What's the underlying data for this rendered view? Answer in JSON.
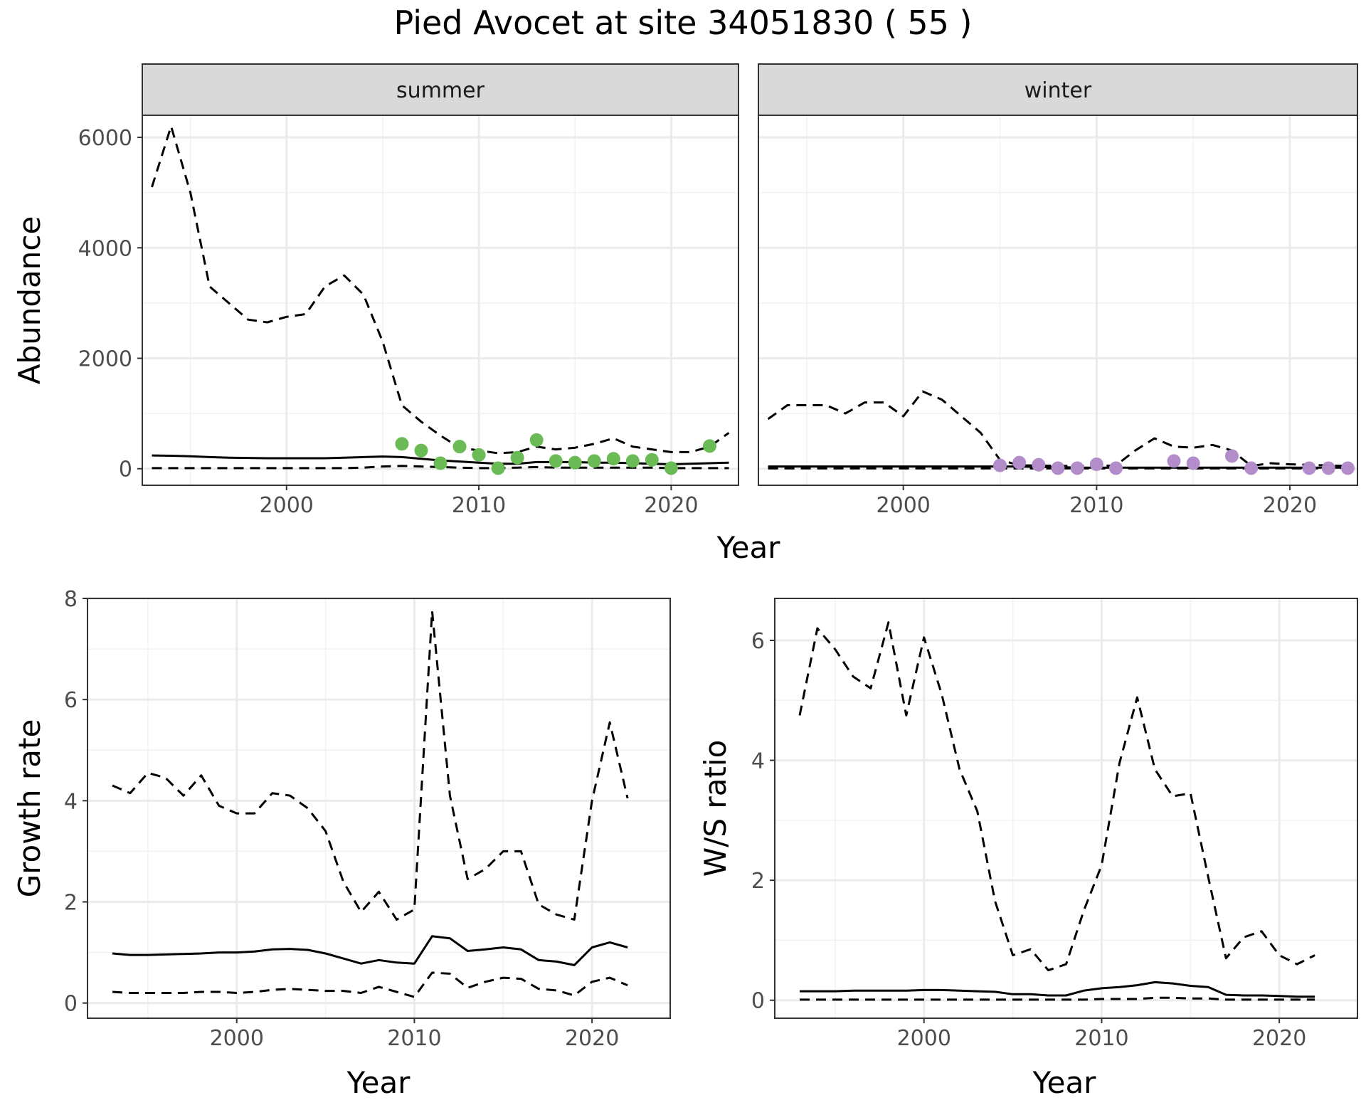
{
  "title": "Pied Avocet at site 34051830 ( 55 )",
  "colors": {
    "summer_points": "#6abb55",
    "winter_points": "#b28dc9",
    "line": "#000000",
    "grid_major": "#ebebeb",
    "grid_minor": "#f2f2f2",
    "strip_fill": "#d9d9d9",
    "panel_border": "#333333"
  },
  "chart_data": [
    {
      "type": "line",
      "panel": "abundance-summer",
      "facet_label": "summer",
      "xlabel": "Year",
      "ylabel": "Abundance",
      "xlim": [
        1992.5,
        2023.5
      ],
      "ylim": [
        -300,
        6400
      ],
      "x_ticks": [
        2000,
        2010,
        2020
      ],
      "y_ticks": [
        0,
        2000,
        4000,
        6000
      ],
      "grid": true,
      "series": [
        {
          "role": "estimate",
          "style": "solid",
          "x": [
            1993,
            1994,
            1995,
            1996,
            1997,
            1998,
            1999,
            2000,
            2001,
            2002,
            2003,
            2004,
            2005,
            2006,
            2007,
            2008,
            2009,
            2010,
            2011,
            2012,
            2013,
            2014,
            2015,
            2016,
            2017,
            2018,
            2019,
            2020,
            2021,
            2022,
            2023
          ],
          "y": [
            240,
            235,
            225,
            210,
            200,
            195,
            190,
            190,
            190,
            190,
            200,
            210,
            220,
            210,
            180,
            150,
            130,
            110,
            90,
            90,
            120,
            120,
            120,
            110,
            110,
            100,
            90,
            80,
            90,
            100,
            110
          ]
        },
        {
          "role": "upper",
          "style": "dashed",
          "x": [
            1993,
            1994,
            1995,
            1996,
            1997,
            1998,
            1999,
            2000,
            2001,
            2002,
            2003,
            2004,
            2005,
            2006,
            2007,
            2008,
            2009,
            2010,
            2011,
            2012,
            2013,
            2014,
            2015,
            2016,
            2017,
            2018,
            2019,
            2020,
            2021,
            2022,
            2023
          ],
          "y": [
            5100,
            6200,
            5000,
            3300,
            3000,
            2700,
            2650,
            2750,
            2800,
            3300,
            3500,
            3150,
            2300,
            1150,
            850,
            600,
            380,
            330,
            280,
            300,
            400,
            350,
            380,
            450,
            550,
            400,
            350,
            300,
            300,
            400,
            650
          ]
        },
        {
          "role": "lower",
          "style": "dashed",
          "x": [
            1993,
            1994,
            1995,
            1996,
            1997,
            1998,
            1999,
            2000,
            2001,
            2002,
            2003,
            2004,
            2005,
            2006,
            2007,
            2008,
            2009,
            2010,
            2011,
            2012,
            2013,
            2014,
            2015,
            2016,
            2017,
            2018,
            2019,
            2020,
            2021,
            2022,
            2023
          ],
          "y": [
            10,
            10,
            10,
            10,
            10,
            10,
            10,
            10,
            10,
            10,
            10,
            20,
            40,
            50,
            40,
            30,
            20,
            10,
            10,
            20,
            30,
            20,
            20,
            20,
            20,
            20,
            20,
            10,
            10,
            10,
            10
          ]
        }
      ],
      "points": {
        "x": [
          2006,
          2007,
          2008,
          2009,
          2010,
          2011,
          2012,
          2013,
          2014,
          2015,
          2016,
          2017,
          2018,
          2019,
          2020,
          2022
        ],
        "y": [
          450,
          330,
          100,
          400,
          250,
          10,
          200,
          520,
          140,
          110,
          140,
          180,
          140,
          160,
          10,
          410
        ]
      }
    },
    {
      "type": "line",
      "panel": "abundance-winter",
      "facet_label": "winter",
      "xlabel": "Year",
      "ylabel": "Abundance",
      "xlim": [
        1992.5,
        2023.5
      ],
      "ylim": [
        -300,
        6400
      ],
      "x_ticks": [
        2000,
        2010,
        2020
      ],
      "y_ticks": [
        0,
        2000,
        4000,
        6000
      ],
      "grid": true,
      "series": [
        {
          "role": "estimate",
          "style": "solid",
          "x": [
            1993,
            1994,
            1995,
            1996,
            1997,
            1998,
            1999,
            2000,
            2001,
            2002,
            2003,
            2004,
            2005,
            2006,
            2007,
            2008,
            2009,
            2010,
            2011,
            2012,
            2013,
            2014,
            2015,
            2016,
            2017,
            2018,
            2019,
            2020,
            2021,
            2022,
            2023
          ],
          "y": [
            40,
            40,
            40,
            40,
            40,
            40,
            40,
            40,
            40,
            40,
            40,
            40,
            40,
            40,
            30,
            30,
            20,
            20,
            20,
            20,
            20,
            20,
            20,
            20,
            20,
            20,
            20,
            20,
            20,
            20,
            20
          ]
        },
        {
          "role": "upper",
          "style": "dashed",
          "x": [
            1993,
            1994,
            1995,
            1996,
            1997,
            1998,
            1999,
            2000,
            2001,
            2002,
            2003,
            2004,
            2005,
            2006,
            2007,
            2008,
            2009,
            2010,
            2011,
            2012,
            2013,
            2014,
            2015,
            2016,
            2017,
            2018,
            2019,
            2020,
            2021,
            2022,
            2023
          ],
          "y": [
            900,
            1150,
            1150,
            1150,
            1000,
            1200,
            1200,
            950,
            1400,
            1250,
            950,
            650,
            160,
            60,
            60,
            50,
            50,
            50,
            60,
            330,
            550,
            400,
            380,
            430,
            330,
            50,
            100,
            80,
            70,
            60,
            50
          ]
        },
        {
          "role": "lower",
          "style": "dashed",
          "x": [
            1993,
            1994,
            1995,
            1996,
            1997,
            1998,
            1999,
            2000,
            2001,
            2002,
            2003,
            2004,
            2005,
            2006,
            2007,
            2008,
            2009,
            2010,
            2011,
            2012,
            2013,
            2014,
            2015,
            2016,
            2017,
            2018,
            2019,
            2020,
            2021,
            2022,
            2023
          ],
          "y": [
            5,
            5,
            5,
            5,
            5,
            5,
            5,
            5,
            5,
            5,
            5,
            5,
            5,
            5,
            5,
            5,
            5,
            5,
            5,
            5,
            5,
            5,
            5,
            5,
            5,
            5,
            5,
            5,
            5,
            5,
            5
          ]
        }
      ],
      "points": {
        "x": [
          2005,
          2006,
          2007,
          2008,
          2009,
          2010,
          2011,
          2014,
          2015,
          2017,
          2018,
          2021,
          2022,
          2023
        ],
        "y": [
          60,
          110,
          70,
          10,
          10,
          80,
          10,
          140,
          100,
          230,
          10,
          10,
          10,
          10
        ]
      }
    },
    {
      "type": "line",
      "panel": "growth-rate",
      "xlabel": "Year",
      "ylabel": "Growth rate",
      "xlim": [
        1991.6,
        2024.4
      ],
      "ylim": [
        -0.3,
        8.0
      ],
      "x_ticks": [
        2000,
        2010,
        2020
      ],
      "y_ticks": [
        0,
        2,
        4,
        6,
        8
      ],
      "grid": true,
      "series": [
        {
          "role": "estimate",
          "style": "solid",
          "x": [
            1993,
            1994,
            1995,
            1996,
            1997,
            1998,
            1999,
            2000,
            2001,
            2002,
            2003,
            2004,
            2005,
            2006,
            2007,
            2008,
            2009,
            2010,
            2011,
            2012,
            2013,
            2014,
            2015,
            2016,
            2017,
            2018,
            2019,
            2020,
            2021,
            2022
          ],
          "y": [
            0.98,
            0.95,
            0.95,
            0.96,
            0.97,
            0.98,
            1.0,
            1.0,
            1.02,
            1.06,
            1.07,
            1.05,
            0.98,
            0.88,
            0.78,
            0.85,
            0.8,
            0.78,
            1.32,
            1.28,
            1.03,
            1.06,
            1.1,
            1.06,
            0.85,
            0.82,
            0.75,
            1.1,
            1.2,
            1.1
          ]
        },
        {
          "role": "upper",
          "style": "dashed",
          "x": [
            1993,
            1994,
            1995,
            1996,
            1997,
            1998,
            1999,
            2000,
            2001,
            2002,
            2003,
            2004,
            2005,
            2006,
            2007,
            2008,
            2009,
            2010,
            2011,
            2012,
            2013,
            2014,
            2015,
            2016,
            2017,
            2018,
            2019,
            2020,
            2021,
            2022
          ],
          "y": [
            4.3,
            4.15,
            4.55,
            4.45,
            4.1,
            4.5,
            3.9,
            3.75,
            3.75,
            4.15,
            4.1,
            3.85,
            3.4,
            2.4,
            1.8,
            2.2,
            1.65,
            1.85,
            7.75,
            4.1,
            2.45,
            2.65,
            3.0,
            3.0,
            1.95,
            1.75,
            1.65,
            4.0,
            5.55,
            4.05
          ]
        },
        {
          "role": "lower",
          "style": "dashed",
          "x": [
            1993,
            1994,
            1995,
            1996,
            1997,
            1998,
            1999,
            2000,
            2001,
            2002,
            2003,
            2004,
            2005,
            2006,
            2007,
            2008,
            2009,
            2010,
            2011,
            2012,
            2013,
            2014,
            2015,
            2016,
            2017,
            2018,
            2019,
            2020,
            2021,
            2022
          ],
          "y": [
            0.22,
            0.2,
            0.2,
            0.2,
            0.2,
            0.22,
            0.22,
            0.2,
            0.22,
            0.26,
            0.28,
            0.26,
            0.24,
            0.24,
            0.2,
            0.32,
            0.22,
            0.12,
            0.6,
            0.58,
            0.3,
            0.42,
            0.5,
            0.48,
            0.28,
            0.25,
            0.15,
            0.42,
            0.5,
            0.35
          ]
        }
      ]
    },
    {
      "type": "line",
      "panel": "ws-ratio",
      "xlabel": "Year",
      "ylabel": "W/S ratio",
      "xlim": [
        1991.6,
        2024.4
      ],
      "ylim": [
        -0.3,
        6.7
      ],
      "x_ticks": [
        2000,
        2010,
        2020
      ],
      "y_ticks": [
        0,
        2,
        4,
        6
      ],
      "grid": true,
      "series": [
        {
          "role": "estimate",
          "style": "solid",
          "x": [
            1993,
            1994,
            1995,
            1996,
            1997,
            1998,
            1999,
            2000,
            2001,
            2002,
            2003,
            2004,
            2005,
            2006,
            2007,
            2008,
            2009,
            2010,
            2011,
            2012,
            2013,
            2014,
            2015,
            2016,
            2017,
            2018,
            2019,
            2020,
            2021,
            2022
          ],
          "y": [
            0.15,
            0.15,
            0.15,
            0.16,
            0.16,
            0.16,
            0.16,
            0.17,
            0.17,
            0.16,
            0.15,
            0.14,
            0.1,
            0.1,
            0.08,
            0.08,
            0.16,
            0.2,
            0.22,
            0.25,
            0.3,
            0.28,
            0.24,
            0.22,
            0.09,
            0.08,
            0.08,
            0.07,
            0.06,
            0.06
          ]
        },
        {
          "role": "upper",
          "style": "dashed",
          "x": [
            1993,
            1994,
            1995,
            1996,
            1997,
            1998,
            1999,
            2000,
            2001,
            2002,
            2003,
            2004,
            2005,
            2006,
            2007,
            2008,
            2009,
            2010,
            2011,
            2012,
            2013,
            2014,
            2015,
            2016,
            2017,
            2018,
            2019,
            2020,
            2021,
            2022
          ],
          "y": [
            4.75,
            6.2,
            5.85,
            5.4,
            5.2,
            6.3,
            4.75,
            6.05,
            5.1,
            3.85,
            3.15,
            1.65,
            0.75,
            0.85,
            0.5,
            0.6,
            1.5,
            2.25,
            3.95,
            5.05,
            3.85,
            3.4,
            3.45,
            2.05,
            0.7,
            1.05,
            1.15,
            0.75,
            0.6,
            0.75
          ]
        },
        {
          "role": "lower",
          "style": "dashed",
          "x": [
            1993,
            1994,
            1995,
            1996,
            1997,
            1998,
            1999,
            2000,
            2001,
            2002,
            2003,
            2004,
            2005,
            2006,
            2007,
            2008,
            2009,
            2010,
            2011,
            2012,
            2013,
            2014,
            2015,
            2016,
            2017,
            2018,
            2019,
            2020,
            2021,
            2022
          ],
          "y": [
            0.01,
            0.01,
            0.01,
            0.01,
            0.01,
            0.01,
            0.01,
            0.01,
            0.01,
            0.01,
            0.01,
            0.01,
            0.01,
            0.01,
            0.01,
            0.01,
            0.01,
            0.02,
            0.02,
            0.02,
            0.04,
            0.04,
            0.03,
            0.03,
            0.01,
            0.01,
            0.01,
            0.01,
            0.01,
            0.01
          ]
        }
      ]
    }
  ]
}
